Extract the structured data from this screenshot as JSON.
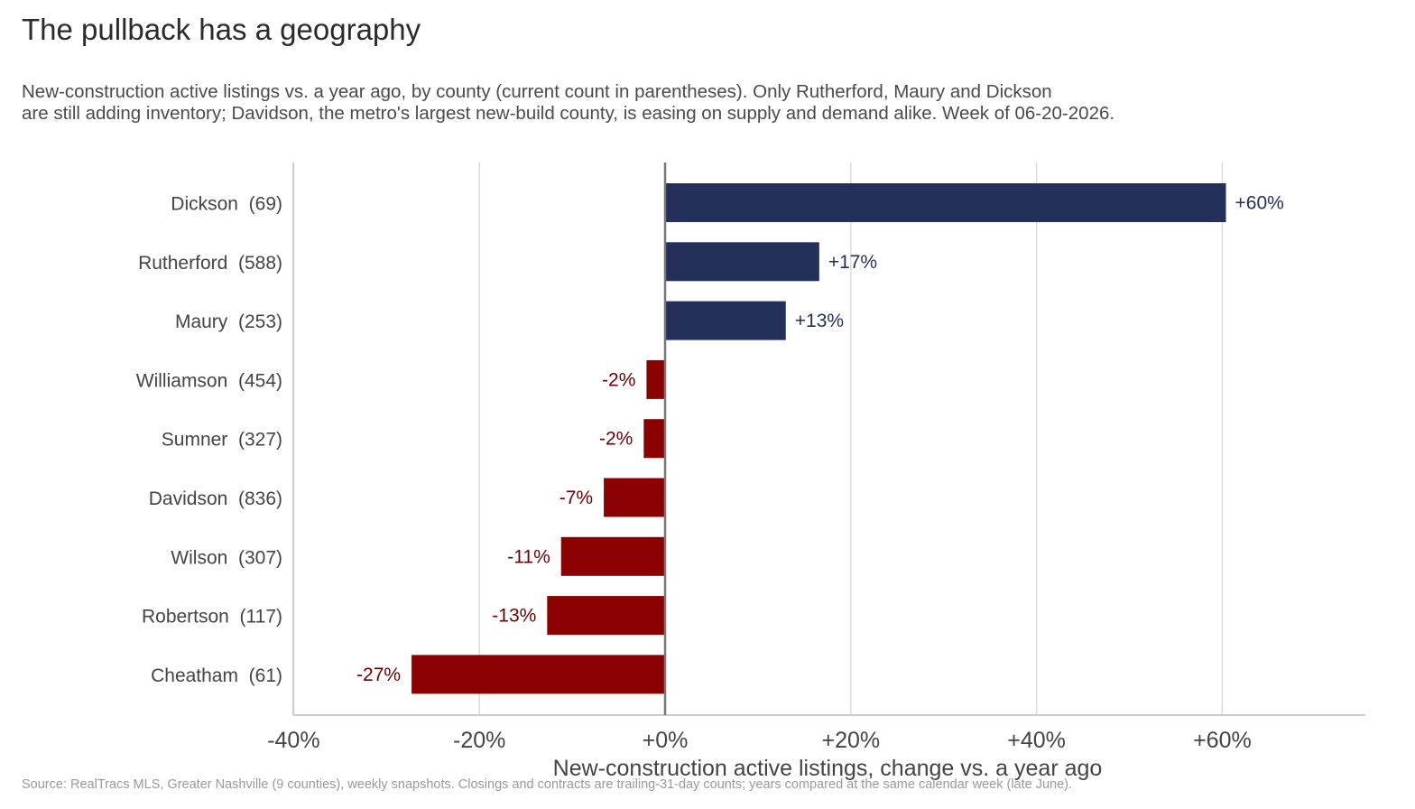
{
  "title": "The pullback has a geography",
  "subtitle": {
    "line1": "New-construction active listings vs. a year ago, by county (current count in parentheses). Only Rutherford, Maury and Dickson",
    "line2": "are still adding inventory; Davidson, the metro's largest new-build county, is easing on supply and demand alike. Week of 06-20-2026."
  },
  "source": "Source: RealTracs MLS, Greater Nashville (9 counties), weekly snapshots. Closings and contracts are trailing-31-day counts; years compared at the same calendar week (late June).",
  "chart_data": {
    "type": "bar",
    "orientation": "horizontal",
    "categories": [
      "Dickson  (69)",
      "Rutherford  (588)",
      "Maury  (253)",
      "Williamson  (454)",
      "Sumner  (327)",
      "Davidson  (836)",
      "Wilson  (307)",
      "Robertson  (117)",
      "Cheatham  (61)"
    ],
    "values": [
      60.4,
      16.6,
      13.0,
      -2.0,
      -2.3,
      -6.6,
      -11.2,
      -12.7,
      -27.3
    ],
    "value_labels": [
      "+60%",
      "+17%",
      "+13%",
      "-2%",
      "-2%",
      "-7%",
      "-11%",
      "-13%",
      "-27%"
    ],
    "xlabel": "New-construction active listings, change vs. a year ago",
    "xticks": [
      -40,
      -20,
      0,
      20,
      40,
      60
    ],
    "xtick_labels": [
      "-40%",
      "-20%",
      "+0%",
      "+20%",
      "+40%",
      "+60%"
    ],
    "xlim": [
      -40,
      75
    ],
    "grid": "vertical",
    "colors": {
      "positive": "#23305a",
      "negative": "#8b0000",
      "positive_label": "#23305a",
      "negative_label": "#6b0000",
      "zero_line": "#777777",
      "grid": "#dddddd",
      "axis": "#cccccc"
    }
  }
}
